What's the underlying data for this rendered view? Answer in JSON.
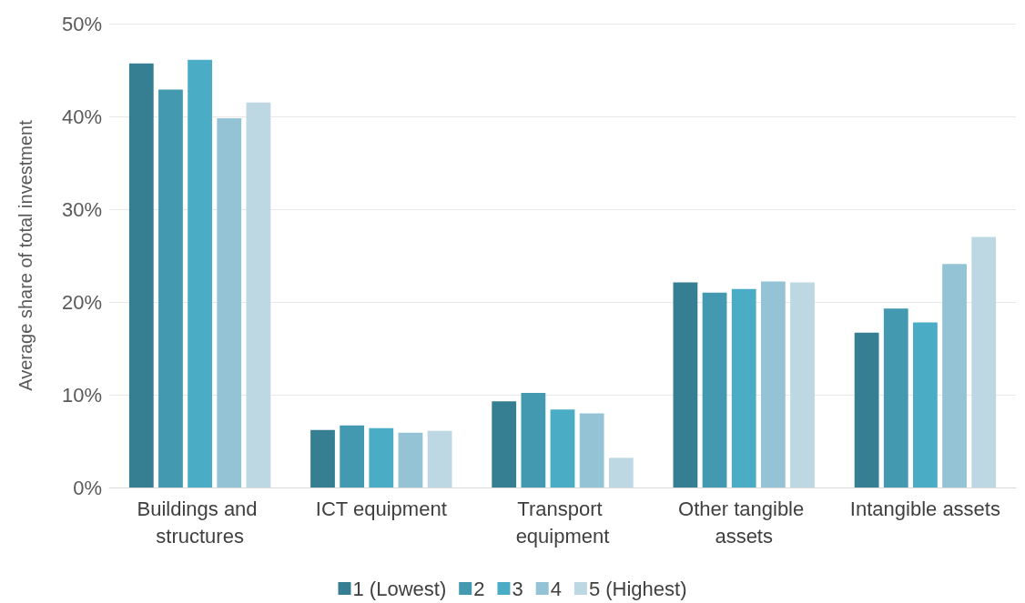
{
  "chart_data": {
    "type": "bar",
    "ylabel": "Average share of total investment",
    "categories": [
      "Buildings and structures",
      "ICT equipment",
      "Transport equipment",
      "Other tangible assets",
      "Intangible assets"
    ],
    "series": [
      {
        "name": "1 (Lowest)",
        "color": "#367f93",
        "values": [
          45.7,
          6.2,
          9.3,
          22.1,
          16.7
        ]
      },
      {
        "name": "2",
        "color": "#4299b0",
        "values": [
          42.9,
          6.7,
          10.2,
          21.0,
          19.3
        ]
      },
      {
        "name": "3",
        "color": "#4bacc6",
        "values": [
          46.1,
          6.4,
          8.4,
          21.4,
          17.8
        ]
      },
      {
        "name": "4",
        "color": "#93c3d5",
        "values": [
          39.8,
          5.9,
          8.0,
          22.2,
          24.1
        ]
      },
      {
        "name": "5 (Highest)",
        "color": "#bdd8e3",
        "values": [
          41.5,
          6.1,
          3.2,
          22.1,
          27.0
        ]
      }
    ],
    "ylim": [
      0,
      50
    ],
    "yticks": [
      {
        "value": 0,
        "label": "0%"
      },
      {
        "value": 10,
        "label": "10%"
      },
      {
        "value": 20,
        "label": "20%"
      },
      {
        "value": 30,
        "label": "30%"
      },
      {
        "value": 40,
        "label": "40%"
      },
      {
        "value": 50,
        "label": "50%"
      }
    ],
    "grid": "y",
    "legend": "bottom"
  }
}
